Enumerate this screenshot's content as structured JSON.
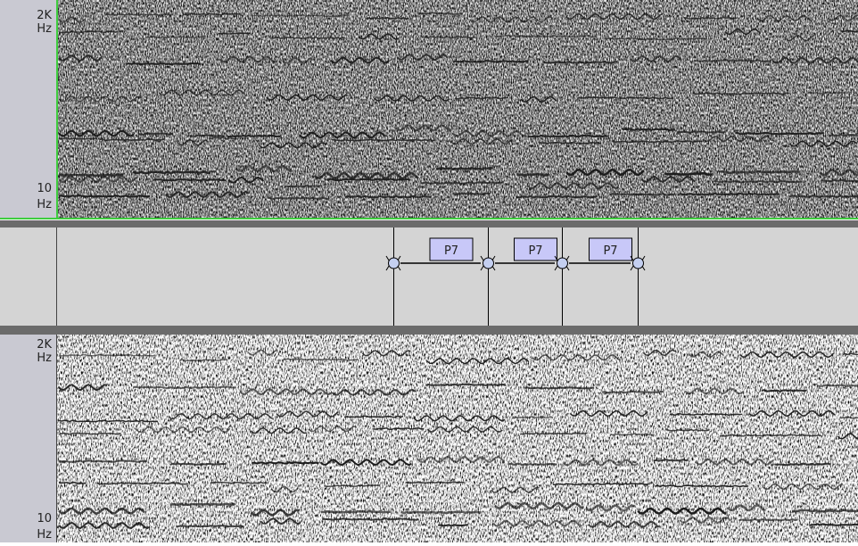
{
  "spectrogram_top": {
    "top_label": [
      "2K",
      "Hz"
    ],
    "bottom_label": [
      "10",
      "Hz"
    ]
  },
  "label_track": {
    "labels": [
      {
        "text": "P7"
      },
      {
        "text": "P7"
      },
      {
        "text": "P7"
      }
    ]
  },
  "spectrogram_bottom": {
    "top_label": [
      "2K",
      "Hz"
    ],
    "bottom_label": [
      "10",
      "Hz"
    ]
  }
}
